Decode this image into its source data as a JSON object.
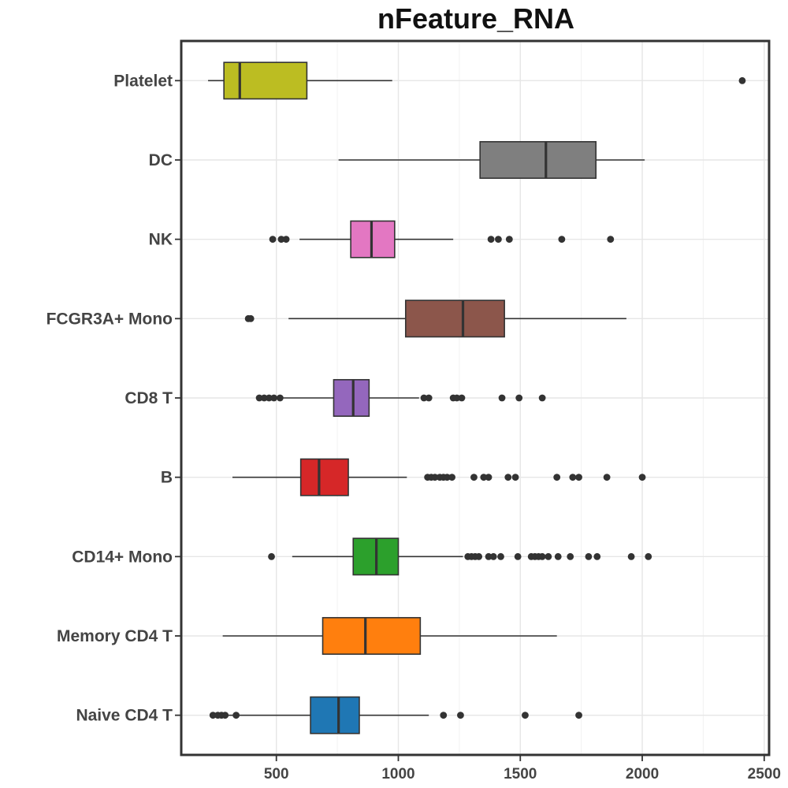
{
  "chart_data": {
    "type": "boxplot",
    "orientation": "horizontal",
    "title": "nFeature_RNA",
    "xlabel": "",
    "ylabel": "",
    "xlim": [
      110,
      2520
    ],
    "x_ticks": [
      500,
      1000,
      1500,
      2000,
      2500
    ],
    "x_tick_labels": [
      "500",
      "1000",
      "1500",
      "2000",
      "2500"
    ],
    "grid": true,
    "legend": "none",
    "categories": [
      "Naive CD4 T",
      "Memory CD4 T",
      "CD14+ Mono",
      "B",
      "CD8 T",
      "FCGR3A+ Mono",
      "NK",
      "DC",
      "Platelet"
    ],
    "series": [
      {
        "category": "Naive CD4 T",
        "color": "#1f77b4",
        "whisker_low": 240,
        "q1": 640,
        "median": 755,
        "q3": 840,
        "whisker_high": 1125,
        "outliers": [
          240,
          260,
          275,
          290,
          335,
          1185,
          1255,
          1520,
          1740
        ]
      },
      {
        "category": "Memory CD4 T",
        "color": "#ff7f0e",
        "whisker_low": 280,
        "q1": 690,
        "median": 865,
        "q3": 1090,
        "whisker_high": 1650,
        "outliers": []
      },
      {
        "category": "CD14+ Mono",
        "color": "#2ca02c",
        "whisker_low": 565,
        "q1": 815,
        "median": 910,
        "q3": 1000,
        "whisker_high": 1265,
        "outliers": [
          480,
          1285,
          1300,
          1315,
          1330,
          1370,
          1390,
          1420,
          1490,
          1545,
          1560,
          1575,
          1590,
          1615,
          1655,
          1705,
          1780,
          1815,
          1955,
          2025
        ]
      },
      {
        "category": "B",
        "color": "#d62728",
        "whisker_low": 320,
        "q1": 600,
        "median": 675,
        "q3": 795,
        "whisker_high": 1035,
        "outliers": [
          1120,
          1135,
          1150,
          1170,
          1185,
          1200,
          1220,
          1310,
          1350,
          1370,
          1450,
          1480,
          1650,
          1715,
          1740,
          1855,
          2000
        ]
      },
      {
        "category": "CD8 T",
        "color": "#9467bd",
        "whisker_low": 430,
        "q1": 735,
        "median": 815,
        "q3": 880,
        "whisker_high": 1085,
        "outliers": [
          430,
          450,
          470,
          490,
          515,
          1105,
          1125,
          1225,
          1240,
          1260,
          1425,
          1495,
          1590
        ]
      },
      {
        "category": "FCGR3A+ Mono",
        "color": "#8c564b",
        "whisker_low": 550,
        "q1": 1030,
        "median": 1265,
        "q3": 1435,
        "whisker_high": 1935,
        "outliers": [
          385,
          395
        ]
      },
      {
        "category": "NK",
        "color": "#e377c2",
        "whisker_low": 595,
        "q1": 805,
        "median": 890,
        "q3": 985,
        "whisker_high": 1225,
        "outliers": [
          485,
          520,
          540,
          1380,
          1410,
          1455,
          1670,
          1870
        ]
      },
      {
        "category": "DC",
        "color": "#7f7f7f",
        "whisker_low": 755,
        "q1": 1335,
        "median": 1605,
        "q3": 1810,
        "whisker_high": 2010,
        "outliers": []
      },
      {
        "category": "Platelet",
        "color": "#bcbd22",
        "whisker_low": 220,
        "q1": 285,
        "median": 350,
        "q3": 625,
        "whisker_high": 975,
        "outliers": [
          2410
        ]
      }
    ]
  }
}
